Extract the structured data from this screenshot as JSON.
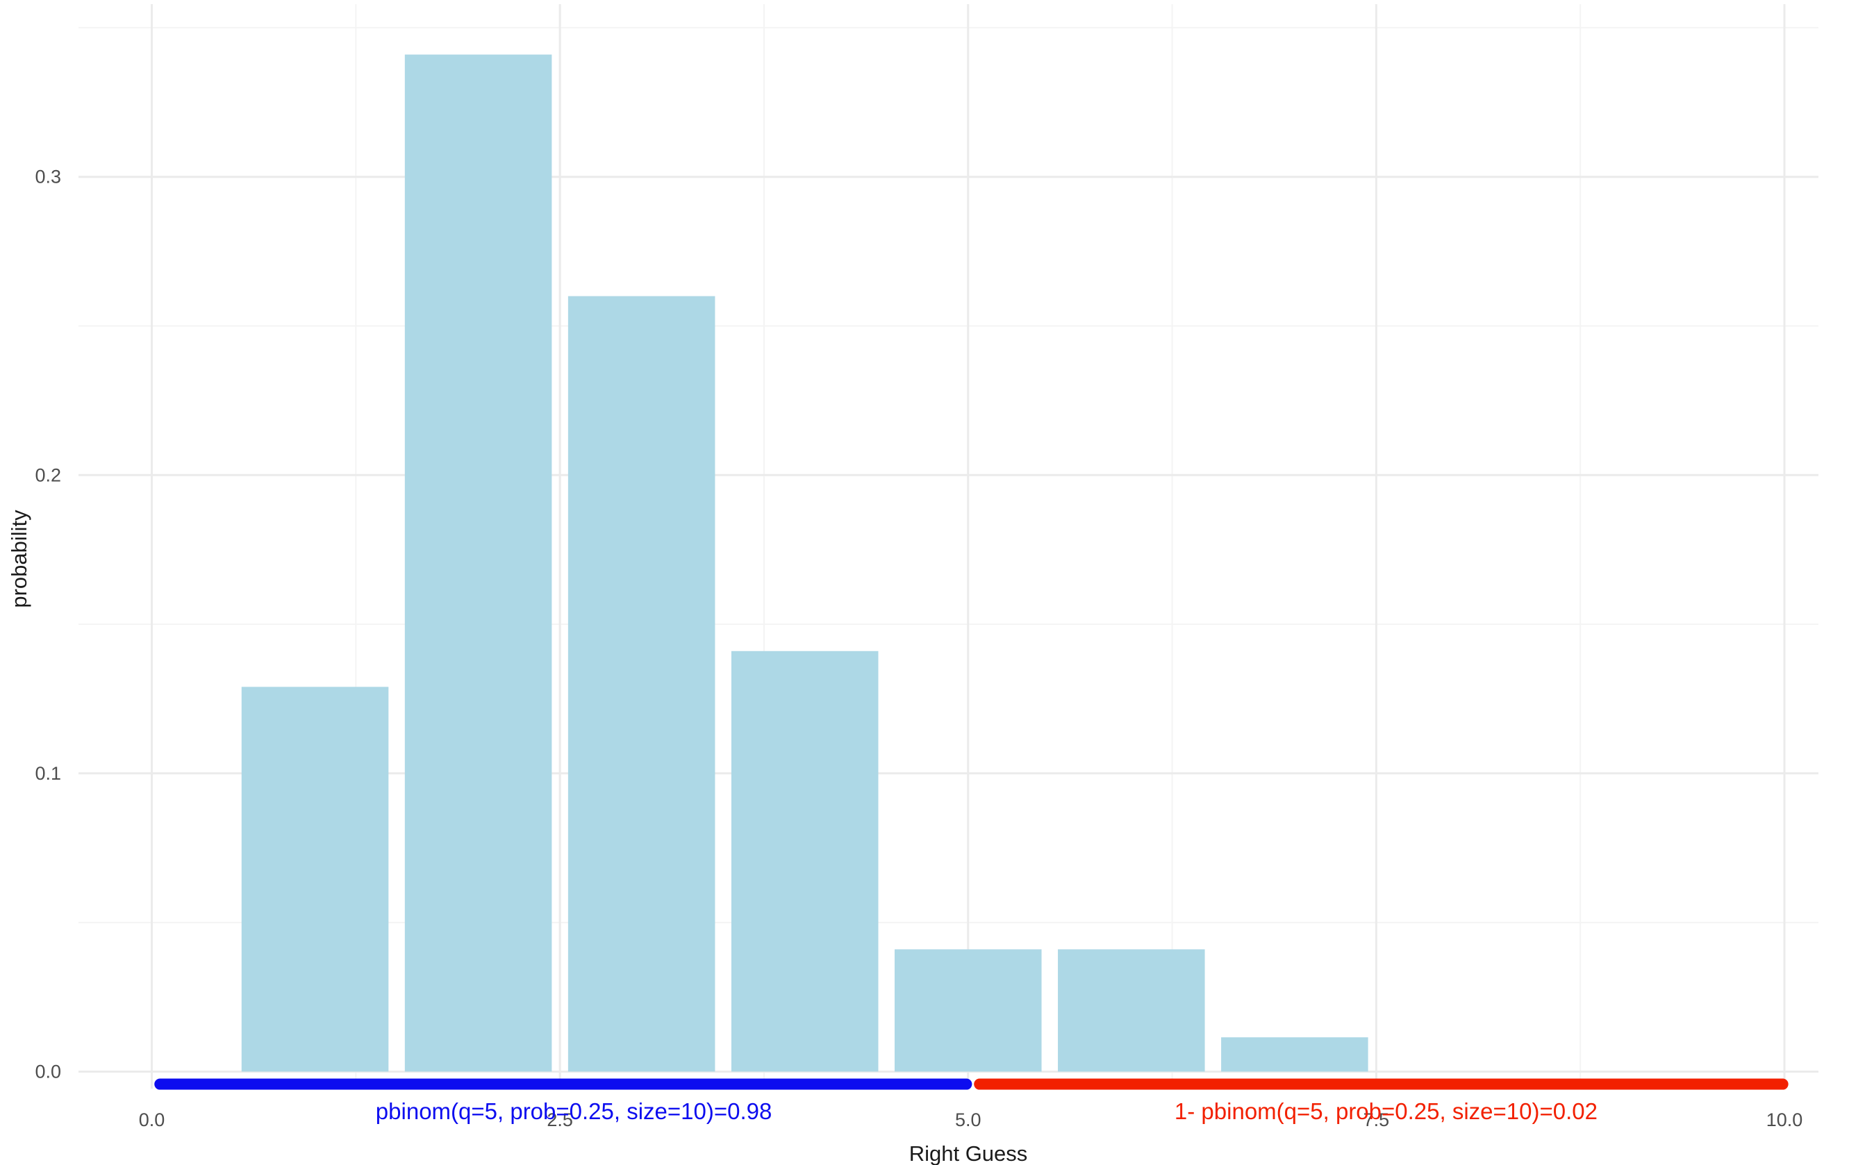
{
  "page": {
    "background": "#FFFFFF"
  },
  "chart_data": {
    "type": "bar",
    "title": "",
    "xlabel": "Right Guess",
    "ylabel": "probability",
    "x": [
      1,
      2,
      3,
      4,
      5,
      6,
      7
    ],
    "values": [
      0.129,
      0.341,
      0.26,
      0.141,
      0.041,
      0.041,
      0.0115
    ],
    "bar_width": 0.9,
    "bar_color": "#ADD8E6",
    "xlim": [
      0,
      10
    ],
    "ylim": [
      -0.02,
      0.36
    ],
    "x_ticks": {
      "values": [
        0,
        2.5,
        5,
        7.5,
        10
      ],
      "labels": [
        "0.0",
        "2.5",
        "5.0",
        "7.5",
        "10.0"
      ]
    },
    "y_ticks": {
      "values": [
        0,
        0.1,
        0.2,
        0.3
      ],
      "labels": [
        "0.0",
        "0.1",
        "0.2",
        "0.3"
      ]
    },
    "x_minor_ticks": [
      1.25,
      3.75,
      6.25,
      8.75
    ],
    "y_minor_ticks": [
      0.05,
      0.15,
      0.25,
      0.35
    ],
    "grid": {
      "on": true,
      "major_color": "#EBEBEB",
      "minor_color": "#F4F4F4"
    },
    "axis_text_color": "#4D4D4D",
    "axis_title_color": "#1A1A1A",
    "legend": null,
    "segments": [
      {
        "x1": 0.05,
        "x2": 4.99,
        "y": -0.0042,
        "color": "#0D0DEF",
        "label": "pbinom(q=5, prob=0.25, size=10)=0.98",
        "label_x": 2.585
      },
      {
        "x1": 5.07,
        "x2": 9.99,
        "y": -0.0042,
        "color": "#F22000",
        "label": "1- pbinom(q=5, prob=0.25, size=10)=0.02",
        "label_x": 7.56
      }
    ]
  }
}
